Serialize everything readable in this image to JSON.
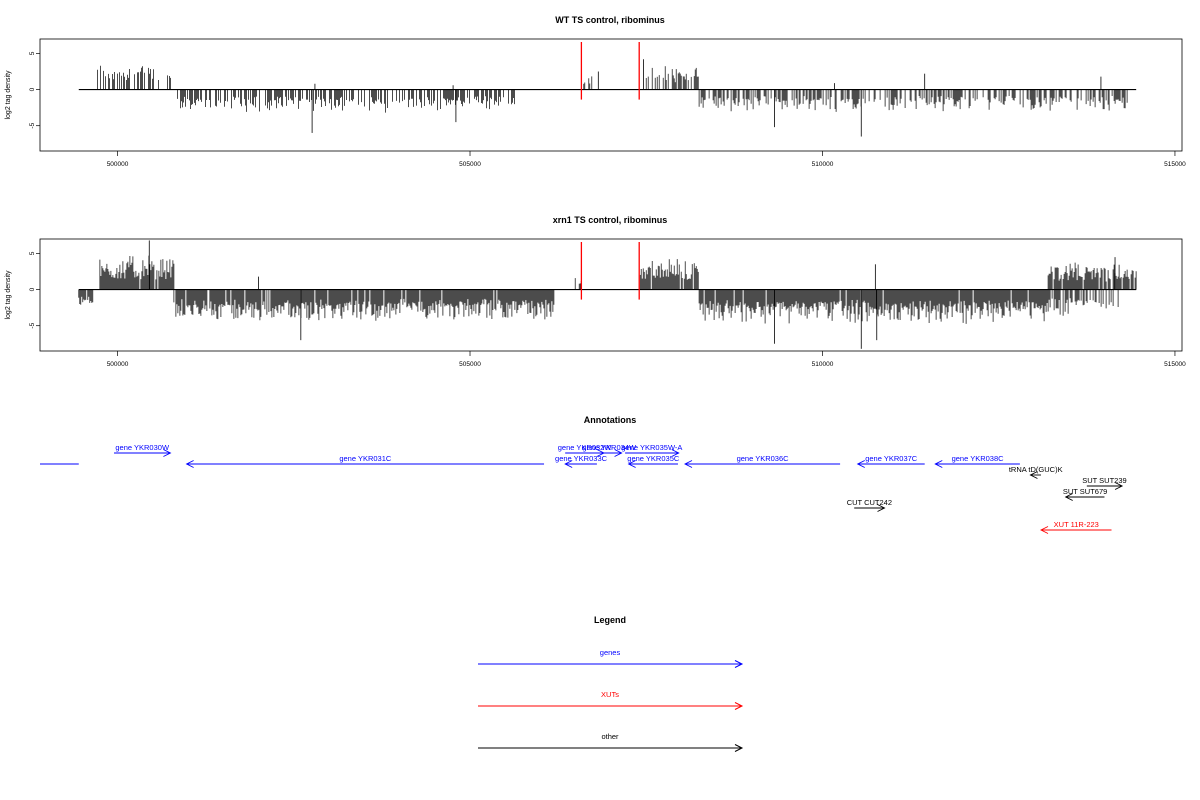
{
  "colors": {
    "genes": "#0000ff",
    "xuts": "#ff0000",
    "other": "#000000",
    "marker": "#ff0000"
  },
  "chart_data": [
    {
      "type": "bar",
      "title": "WT TS control, ribominus",
      "ylabel": "log2 tag density",
      "xlim": [
        498900,
        515100
      ],
      "ylim": [
        -8.5,
        7
      ],
      "xticks": [
        500000,
        505000,
        510000,
        515000
      ],
      "xtick_labels": [
        "500000",
        "505000",
        "510000",
        "515000"
      ],
      "yticks": [
        5,
        0,
        -5
      ],
      "ytick_labels": [
        "5",
        "0",
        "-5"
      ],
      "baseline_range": [
        499450,
        514450
      ],
      "markers": [
        506580,
        507400
      ],
      "segments": [
        {
          "from": 499700,
          "to": 500750,
          "sign": 1,
          "amp": 3.2,
          "density": 0.45
        },
        {
          "from": 500850,
          "to": 505700,
          "sign": -1,
          "amp": 2.6,
          "density": 0.6
        },
        {
          "from": 506600,
          "to": 506750,
          "sign": 1,
          "amp": 2.0,
          "density": 0.3
        },
        {
          "from": 507500,
          "to": 508250,
          "sign": 1,
          "amp": 2.8,
          "density": 0.6
        },
        {
          "from": 508250,
          "to": 514350,
          "sign": -1,
          "amp": 2.5,
          "density": 0.55
        }
      ],
      "spikes": [
        {
          "x": 502760,
          "y": -6.0
        },
        {
          "x": 502800,
          "y": 0.8
        },
        {
          "x": 504800,
          "y": -4.5
        },
        {
          "x": 504760,
          "y": 0.6
        },
        {
          "x": 509320,
          "y": -5.2
        },
        {
          "x": 510170,
          "y": 0.9
        },
        {
          "x": 510550,
          "y": -6.5
        },
        {
          "x": 511450,
          "y": 2.2
        },
        {
          "x": 506820,
          "y": 2.5
        },
        {
          "x": 507460,
          "y": 4.2
        },
        {
          "x": 513950,
          "y": 1.8
        }
      ]
    },
    {
      "type": "bar",
      "title": "xrn1 TS control, ribominus",
      "ylabel": "log2 tag density",
      "xlim": [
        498900,
        515100
      ],
      "ylim": [
        -8.5,
        7
      ],
      "xticks": [
        500000,
        505000,
        510000,
        515000
      ],
      "xtick_labels": [
        "500000",
        "505000",
        "510000",
        "515000"
      ],
      "yticks": [
        5,
        0,
        -5
      ],
      "ytick_labels": [
        "5",
        "0",
        "-5"
      ],
      "baseline_range": [
        499450,
        514450
      ],
      "markers": [
        506580,
        507400
      ],
      "segments": [
        {
          "from": 499450,
          "to": 499650,
          "sign": -1,
          "amp": 2.5,
          "density": 0.9
        },
        {
          "from": 499750,
          "to": 500800,
          "sign": 1,
          "amp": 4.0,
          "density": 0.95
        },
        {
          "from": 500800,
          "to": 506200,
          "sign": -1,
          "amp": 3.6,
          "density": 0.95
        },
        {
          "from": 506450,
          "to": 506650,
          "sign": 1,
          "amp": 1.5,
          "density": 0.3
        },
        {
          "from": 507400,
          "to": 508250,
          "sign": 1,
          "amp": 3.5,
          "density": 0.95
        },
        {
          "from": 508250,
          "to": 513200,
          "sign": -1,
          "amp": 4.0,
          "density": 0.95
        },
        {
          "from": 513200,
          "to": 514450,
          "sign": 1,
          "amp": 3.2,
          "density": 0.9
        },
        {
          "from": 513200,
          "to": 514200,
          "sign": -1,
          "amp": 3.0,
          "density": 0.6
        }
      ],
      "spikes": [
        {
          "x": 502000,
          "y": 1.8
        },
        {
          "x": 502600,
          "y": -7.0
        },
        {
          "x": 509320,
          "y": -7.5
        },
        {
          "x": 510550,
          "y": -8.2
        },
        {
          "x": 510750,
          "y": 3.5
        },
        {
          "x": 510770,
          "y": -7.0
        },
        {
          "x": 500450,
          "y": 6.8
        },
        {
          "x": 514150,
          "y": 4.5
        }
      ]
    }
  ],
  "annotations": {
    "title": "Annotations",
    "items": [
      {
        "label": "",
        "kind": "gene",
        "from": 499450,
        "to": 498900,
        "row": 2,
        "arrowhead": false
      },
      {
        "label": "gene YKR030W",
        "kind": "gene",
        "from": 499950,
        "to": 500750,
        "row": 1,
        "arrowhead": true
      },
      {
        "label": "gene YKR031C",
        "kind": "gene",
        "from": 506050,
        "to": 500980,
        "row": 2,
        "arrowhead": true
      },
      {
        "label": "gene YKR032W",
        "kind": "gene",
        "from": 506350,
        "to": 506900,
        "row": 1,
        "arrowhead": true
      },
      {
        "label": "gene YKR034W",
        "kind": "gene",
        "from": 506800,
        "to": 507150,
        "row": 1,
        "arrowhead": true
      },
      {
        "label": "gene YKR033C",
        "kind": "gene",
        "from": 506800,
        "to": 506350,
        "row": 2,
        "arrowhead": true
      },
      {
        "label": "gene YKR035W-A",
        "kind": "gene",
        "from": 507200,
        "to": 507960,
        "row": 1,
        "arrowhead": true
      },
      {
        "label": "gene YKR035C",
        "kind": "gene",
        "from": 507950,
        "to": 507250,
        "row": 2,
        "arrowhead": true
      },
      {
        "label": "gene YKR036C",
        "kind": "gene",
        "from": 510250,
        "to": 508050,
        "row": 2,
        "arrowhead": true
      },
      {
        "label": "gene YKR037C",
        "kind": "gene",
        "from": 511450,
        "to": 510500,
        "row": 2,
        "arrowhead": true
      },
      {
        "label": "gene YKR038C",
        "kind": "gene",
        "from": 512800,
        "to": 511600,
        "row": 2,
        "arrowhead": true
      },
      {
        "label": "tRNA tD(GUC)K",
        "kind": "other",
        "from": 513100,
        "to": 512950,
        "row": 3,
        "arrowhead": true
      },
      {
        "label": "SUT SUT239",
        "kind": "other",
        "from": 513750,
        "to": 514250,
        "row": 4,
        "arrowhead": true
      },
      {
        "label": "SUT SUT679",
        "kind": "other",
        "from": 514000,
        "to": 513450,
        "row": 5,
        "arrowhead": true
      },
      {
        "label": "CUT CUT242",
        "kind": "other",
        "from": 510450,
        "to": 510880,
        "row": 6,
        "arrowhead": true
      },
      {
        "label": "XUT 11R-223",
        "kind": "xut",
        "from": 514100,
        "to": 513100,
        "row": 8,
        "arrowhead": true
      }
    ]
  },
  "legend": {
    "title": "Legend",
    "items": [
      {
        "label": "genes",
        "kind": "gene"
      },
      {
        "label": "XUTs",
        "kind": "xut"
      },
      {
        "label": "other",
        "kind": "other"
      }
    ]
  }
}
